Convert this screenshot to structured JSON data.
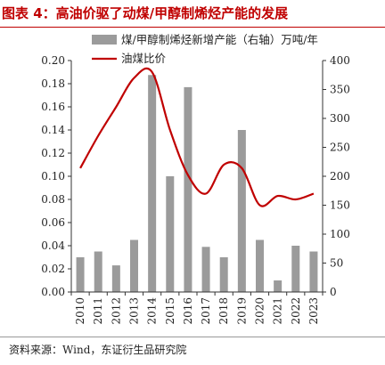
{
  "figure": {
    "title": "图表 4：高油价驱了动煤/甲醇制烯烃产能的发展",
    "source": "资料来源：Wind，东证衍生品研究院"
  },
  "colors": {
    "title": "#c00000",
    "bar": "#9b9b9b",
    "line": "#c00000",
    "axis": "#333333"
  },
  "chart_data": {
    "type": "bar",
    "categories": [
      "2010",
      "2011",
      "2012",
      "2013",
      "2014",
      "2015",
      "2016",
      "2017",
      "2018",
      "2019",
      "2020",
      "2021",
      "2022",
      "2023"
    ],
    "series": [
      {
        "name": "煤/甲醇制烯烃新增产能（右轴）万吨/年",
        "type": "bar",
        "axis": "right",
        "values": [
          60,
          70,
          46,
          90,
          375,
          200,
          354,
          78,
          60,
          280,
          90,
          20,
          80,
          70
        ]
      },
      {
        "name": "油煤比价",
        "type": "line",
        "axis": "left",
        "values": [
          0.107,
          0.135,
          0.16,
          0.185,
          0.19,
          0.14,
          0.101,
          0.085,
          0.11,
          0.107,
          0.075,
          0.083,
          0.08,
          0.085
        ]
      }
    ],
    "y_left": {
      "ylim": [
        0,
        0.2
      ],
      "ticks": [
        "0.00",
        "0.02",
        "0.04",
        "0.06",
        "0.08",
        "0.10",
        "0.12",
        "0.14",
        "0.16",
        "0.18",
        "0.20"
      ]
    },
    "y_right": {
      "ylim": [
        0,
        400
      ],
      "ticks": [
        "0",
        "50",
        "100",
        "150",
        "200",
        "250",
        "300",
        "350",
        "400"
      ]
    },
    "legend": "top-center",
    "grid": false
  }
}
